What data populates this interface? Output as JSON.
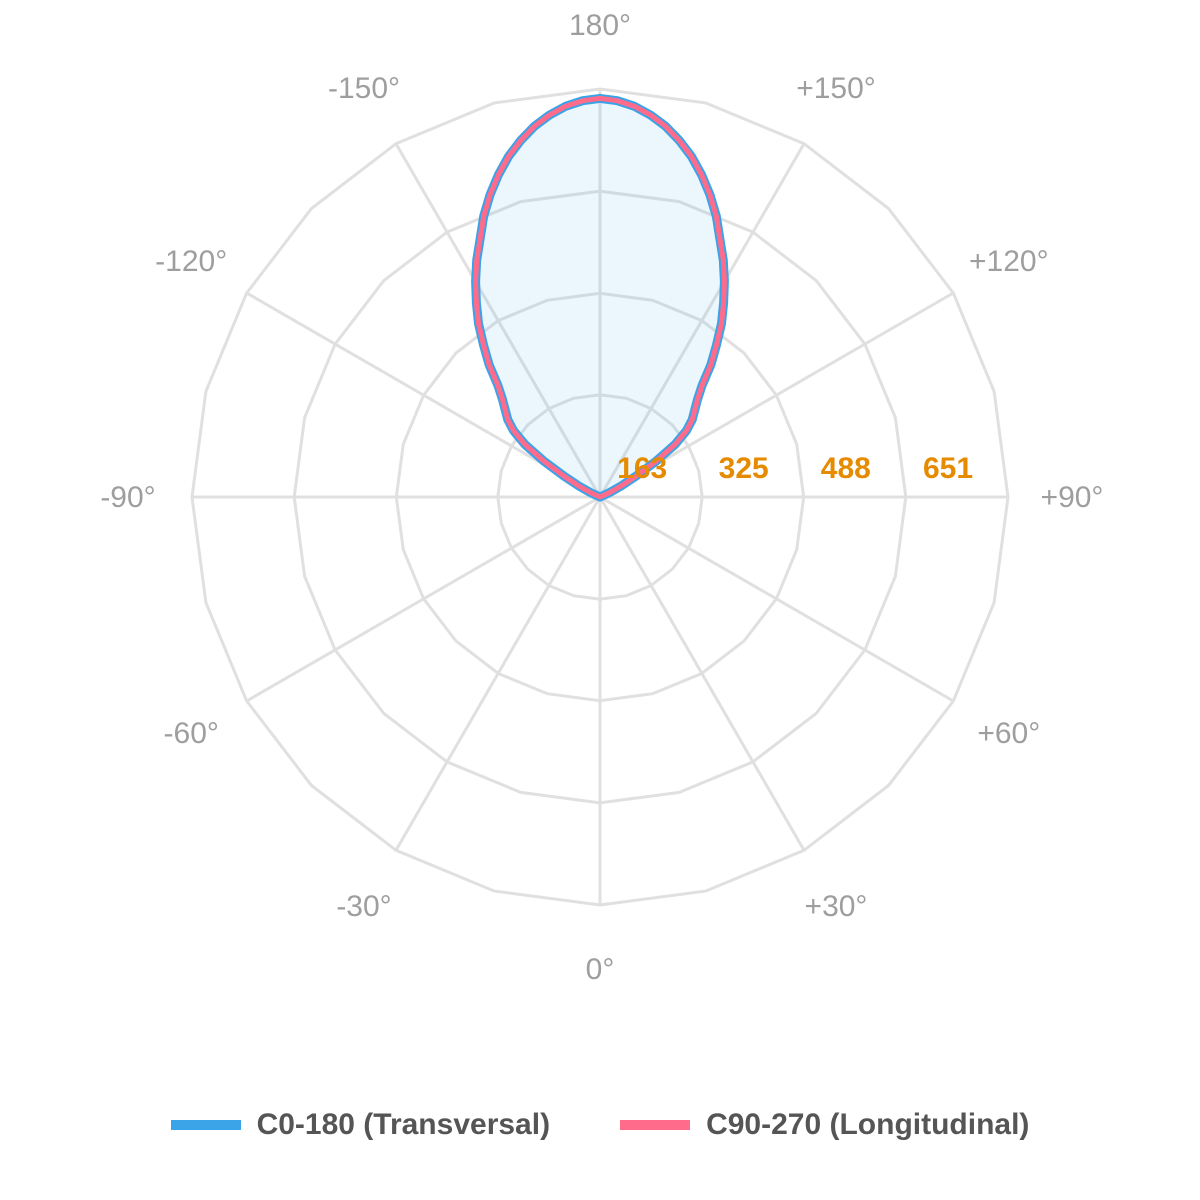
{
  "chart_data": {
    "type": "polar-line",
    "angle_labels": [
      "0°",
      "+30°",
      "+60°",
      "+90°",
      "+120°",
      "+150°",
      "180°",
      "-150°",
      "-120°",
      "-90°",
      "-60°",
      "-30°"
    ],
    "radial_ticks": [
      163,
      325,
      488,
      651
    ],
    "radial_tick_labels": [
      "163",
      "325",
      "488",
      "651"
    ],
    "rmax": 651,
    "angle_zero_direction": "bottom",
    "angle_positive_direction": "counterclockwise",
    "gridlines": true,
    "legend_position": "bottom",
    "series": [
      {
        "name": "C0-180 (Transversal)",
        "color": "#3ba3e8",
        "fill": "rgba(59,163,232,0.10)",
        "angles": [
          112.5,
          115,
          117.5,
          120,
          122.5,
          125,
          127.5,
          130,
          132.5,
          135,
          137.5,
          140,
          142.5,
          145,
          147.5,
          150,
          152.5,
          155,
          157.5,
          160,
          162.5,
          165,
          167.5,
          170,
          172.5,
          175,
          177.5,
          180,
          182.5,
          185,
          187.5,
          190,
          192.5,
          195,
          197.5,
          200,
          202.5,
          205,
          207.5,
          210,
          212.5,
          215,
          217.5,
          220,
          222.5,
          225,
          227.5,
          230,
          232.5,
          235,
          237.5,
          240,
          242.5,
          245,
          247.5
        ],
        "values": [
          0,
          16,
          38,
          66,
          106,
          146,
          174,
          192,
          205,
          220,
          241,
          275,
          305,
          338,
          367,
          397,
          426,
          453,
          485,
          513,
          539,
          563,
          583,
          601,
          615,
          626,
          633,
          636,
          633,
          626,
          615,
          601,
          583,
          563,
          539,
          513,
          485,
          453,
          426,
          397,
          367,
          338,
          305,
          275,
          241,
          220,
          205,
          192,
          174,
          146,
          106,
          66,
          38,
          16,
          0
        ]
      },
      {
        "name": "C90-270 (Longitudinal)",
        "color": "#ff6b8a",
        "angles": [
          112.5,
          115,
          117.5,
          120,
          122.5,
          125,
          127.5,
          130,
          132.5,
          135,
          137.5,
          140,
          142.5,
          145,
          147.5,
          150,
          152.5,
          155,
          157.5,
          160,
          162.5,
          165,
          167.5,
          170,
          172.5,
          175,
          177.5,
          180,
          182.5,
          185,
          187.5,
          190,
          192.5,
          195,
          197.5,
          200,
          202.5,
          205,
          207.5,
          210,
          212.5,
          215,
          217.5,
          220,
          222.5,
          225,
          227.5,
          230,
          232.5,
          235,
          237.5,
          240,
          242.5,
          245,
          247.5
        ],
        "values": [
          0,
          16,
          38,
          66,
          106,
          146,
          174,
          192,
          205,
          220,
          241,
          275,
          305,
          338,
          367,
          397,
          426,
          453,
          485,
          513,
          539,
          563,
          583,
          601,
          615,
          626,
          633,
          636,
          633,
          626,
          615,
          601,
          583,
          563,
          539,
          513,
          485,
          453,
          426,
          397,
          367,
          338,
          305,
          275,
          241,
          220,
          205,
          192,
          174,
          146,
          106,
          66,
          38,
          16,
          0
        ]
      }
    ]
  },
  "legend": {
    "items": [
      {
        "label": "C0-180 (Transversal)",
        "color": "#3ba3e8"
      },
      {
        "label": "C90-270 (Longitudinal)",
        "color": "#ff6b8a"
      }
    ]
  }
}
